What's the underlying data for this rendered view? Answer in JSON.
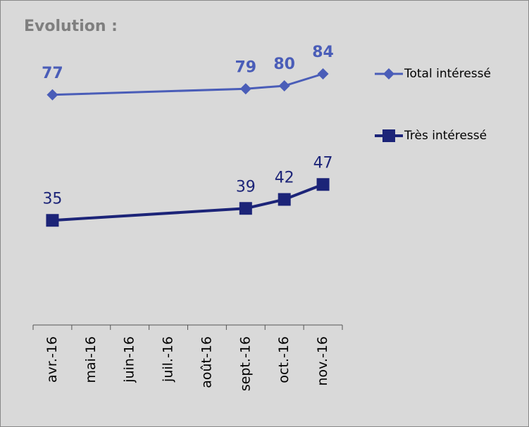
{
  "chart_data": {
    "type": "line",
    "title": "Evolution :",
    "categories": [
      "avr.-16",
      "mai-16",
      "juin-16",
      "juil.-16",
      "août-16",
      "sept.-16",
      "oct.-16",
      "nov.-16"
    ],
    "series": [
      {
        "name": "Total intéressé",
        "color": "#4a5db8",
        "marker": "diamond",
        "values": [
          77,
          null,
          null,
          null,
          null,
          79,
          80,
          84
        ]
      },
      {
        "name": "Très intéressé",
        "color": "#1c2478",
        "marker": "square",
        "values": [
          35,
          null,
          null,
          null,
          null,
          39,
          42,
          47
        ]
      }
    ],
    "ylim": [
      0,
      100
    ],
    "span_gaps": true,
    "legend": "right"
  }
}
